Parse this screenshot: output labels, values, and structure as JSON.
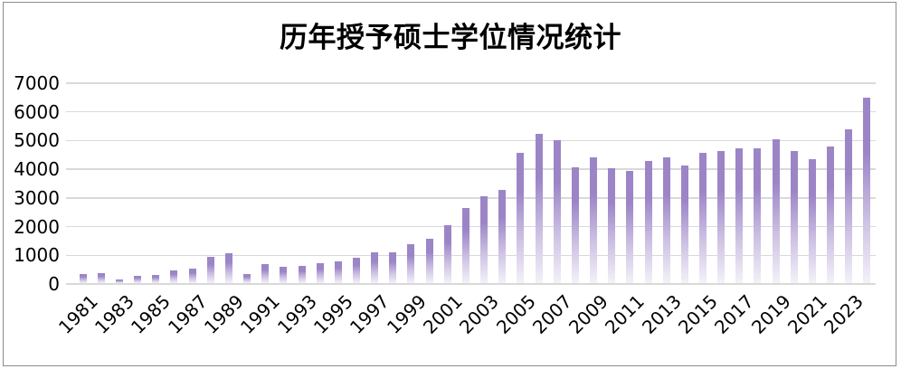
{
  "chart_data": {
    "type": "bar",
    "title": "历年授予硕士学位情况统计",
    "x": [
      "1981",
      "1982",
      "1983",
      "1984",
      "1985",
      "1986",
      "1987",
      "1988",
      "1989",
      "1990",
      "1991",
      "1992",
      "1993",
      "1994",
      "1995",
      "1996",
      "1997",
      "1998",
      "1999",
      "2000",
      "2001",
      "2002",
      "2003",
      "2004",
      "2005",
      "2006",
      "2007",
      "2008",
      "2009",
      "2010",
      "2011",
      "2012",
      "2013",
      "2014",
      "2015",
      "2016",
      "2017",
      "2018",
      "2019",
      "2020",
      "2021",
      "2022",
      "2023",
      "2024"
    ],
    "values": [
      350,
      380,
      160,
      270,
      320,
      470,
      530,
      940,
      1080,
      350,
      700,
      610,
      640,
      740,
      790,
      900,
      1100,
      1100,
      1390,
      1580,
      2040,
      2650,
      3060,
      3270,
      4580,
      5230,
      5010,
      4070,
      4430,
      4040,
      3950,
      4290,
      4430,
      4140,
      4560,
      4620,
      4720,
      4740,
      5040,
      4620,
      4340,
      4790,
      5390,
      6510
    ],
    "x_tick_labels": [
      "1981",
      "1983",
      "1985",
      "1987",
      "1989",
      "1991",
      "1993",
      "1995",
      "1997",
      "1999",
      "2001",
      "2003",
      "2005",
      "2007",
      "2009",
      "2011",
      "2013",
      "2015",
      "2017",
      "2019",
      "2021",
      "2023"
    ],
    "y_ticks": [
      0,
      1000,
      2000,
      3000,
      4000,
      5000,
      6000,
      7000
    ],
    "ylim": [
      0,
      7000
    ],
    "xlabel": "",
    "ylabel": "",
    "grid": true,
    "legend": "none",
    "colors": {
      "bar_top": "#9c85c7",
      "bar_mid": "#cfc4e4",
      "bar_bottom": "#f3f1f8",
      "gridline": "#d9d9d9",
      "axis_text": "#000000",
      "background": "#ffffff",
      "frame_border": "#8c8c8c"
    }
  }
}
